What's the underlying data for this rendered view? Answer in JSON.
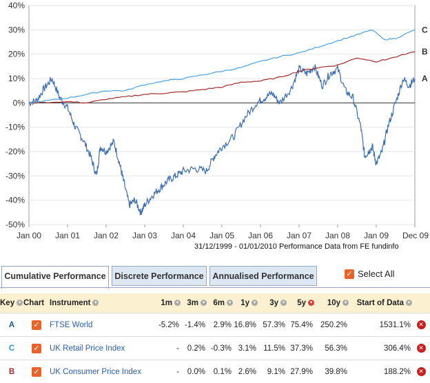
{
  "chart_data": {
    "type": "line",
    "y_ticks": [
      "40%",
      "30%",
      "20%",
      "10%",
      "0%",
      "-10%",
      "-20%",
      "-30%",
      "-40%",
      "-50%"
    ],
    "ylim": [
      -50,
      40
    ],
    "x_ticks": [
      "Jan 00",
      "Jan 01",
      "Jan 02",
      "Jan 03",
      "Jan 04",
      "Jan 05",
      "Jan 06",
      "Jan 07",
      "Jan 08",
      "Jan 09",
      "Dec 09"
    ],
    "caption": "31/12/1999 - 01/01/2010 Performance Data from FE fundinfo",
    "series": [
      {
        "key": "A",
        "color": "#3a6db5",
        "points": [
          [
            0,
            0
          ],
          [
            0.2,
            1
          ],
          [
            0.4,
            6
          ],
          [
            0.6,
            10
          ],
          [
            0.8,
            2
          ],
          [
            1.0,
            -2
          ],
          [
            1.2,
            -10
          ],
          [
            1.4,
            -15
          ],
          [
            1.6,
            -22
          ],
          [
            1.75,
            -30
          ],
          [
            1.85,
            -18
          ],
          [
            2.0,
            -20
          ],
          [
            2.2,
            -16
          ],
          [
            2.35,
            -25
          ],
          [
            2.45,
            -32
          ],
          [
            2.6,
            -42
          ],
          [
            2.75,
            -40
          ],
          [
            2.9,
            -45
          ],
          [
            3.0,
            -42
          ],
          [
            3.2,
            -38
          ],
          [
            3.4,
            -35
          ],
          [
            3.6,
            -32
          ],
          [
            3.8,
            -30
          ],
          [
            4.0,
            -28
          ],
          [
            4.3,
            -27
          ],
          [
            4.6,
            -28
          ],
          [
            4.8,
            -22
          ],
          [
            5.0,
            -18
          ],
          [
            5.3,
            -14
          ],
          [
            5.6,
            -6
          ],
          [
            5.9,
            0
          ],
          [
            6.1,
            2
          ],
          [
            6.3,
            4
          ],
          [
            6.5,
            0
          ],
          [
            6.8,
            6
          ],
          [
            7.0,
            14
          ],
          [
            7.2,
            12
          ],
          [
            7.4,
            15
          ],
          [
            7.6,
            7
          ],
          [
            7.8,
            12
          ],
          [
            8.0,
            14
          ],
          [
            8.2,
            5
          ],
          [
            8.4,
            2
          ],
          [
            8.6,
            -10
          ],
          [
            8.7,
            -22
          ],
          [
            8.8,
            -20
          ],
          [
            8.9,
            -18
          ],
          [
            9.0,
            -25
          ],
          [
            9.15,
            -20
          ],
          [
            9.3,
            -10
          ],
          [
            9.5,
            0
          ],
          [
            9.7,
            10
          ],
          [
            9.85,
            7
          ],
          [
            10.0,
            10
          ]
        ]
      },
      {
        "key": "B",
        "color": "#a52a2a",
        "points": [
          [
            0,
            0
          ],
          [
            1,
            0.5
          ],
          [
            1.5,
            0
          ],
          [
            2,
            1.5
          ],
          [
            2.5,
            2.5
          ],
          [
            3,
            3.5
          ],
          [
            3.5,
            4
          ],
          [
            4,
            4.5
          ],
          [
            4.5,
            5.5
          ],
          [
            5,
            6.5
          ],
          [
            5.5,
            8.5
          ],
          [
            6,
            9
          ],
          [
            6.5,
            10.5
          ],
          [
            7,
            13
          ],
          [
            7.5,
            14.5
          ],
          [
            8,
            15.5
          ],
          [
            8.5,
            18.5
          ],
          [
            9,
            17
          ],
          [
            9.3,
            18
          ],
          [
            10,
            21
          ]
        ]
      },
      {
        "key": "C",
        "color": "#4a9fe0",
        "points": [
          [
            0,
            0
          ],
          [
            0.5,
            1
          ],
          [
            1,
            2
          ],
          [
            1.5,
            3.5
          ],
          [
            2,
            5
          ],
          [
            2.5,
            5
          ],
          [
            3,
            7.5
          ],
          [
            3.5,
            9
          ],
          [
            4,
            10
          ],
          [
            4.5,
            11.5
          ],
          [
            5,
            13
          ],
          [
            5.5,
            14.5
          ],
          [
            6,
            17
          ],
          [
            6.5,
            19
          ],
          [
            7,
            20.5
          ],
          [
            7.5,
            23
          ],
          [
            8,
            25.5
          ],
          [
            8.5,
            28
          ],
          [
            8.9,
            30
          ],
          [
            9.2,
            26
          ],
          [
            9.5,
            26.5
          ],
          [
            10,
            30
          ]
        ]
      }
    ]
  },
  "tabs": [
    {
      "label": "Cumulative Performance",
      "active": true
    },
    {
      "label": "Discrete Performance",
      "active": false
    },
    {
      "label": "Annualised Performance",
      "active": false
    }
  ],
  "select_all_label": "Select All",
  "table": {
    "headers": [
      "Key",
      "Chart",
      "Instrument",
      "1m",
      "3m",
      "6m",
      "1y",
      "3y",
      "5y",
      "10y",
      "Start of Data"
    ],
    "rows": [
      {
        "key": "A",
        "instrument": "FTSE World",
        "m1": "-5.2%",
        "m3": "-1.4%",
        "m6": "2.9%",
        "y1": "16.8%",
        "y3": "57.3%",
        "y5": "75.4%",
        "y10": "250.2%",
        "start": "1531.1%"
      },
      {
        "key": "C",
        "instrument": "UK Retail Price Index",
        "m1": "-",
        "m3": "0.2%",
        "m6": "-0.3%",
        "y1": "3.1%",
        "y3": "11.5%",
        "y5": "37.3%",
        "y10": "56.3%",
        "start": "306.4%"
      },
      {
        "key": "B",
        "instrument": "UK Consumer Price Index",
        "m1": "-",
        "m3": "0.0%",
        "m6": "0.1%",
        "y1": "2.6%",
        "y3": "9.1%",
        "y5": "27.9%",
        "y10": "39.8%",
        "start": "188.2%"
      }
    ]
  },
  "icons": {
    "sort": "sort-chevron-icon",
    "checkbox": "checkmark-icon",
    "remove": "remove-x-icon"
  }
}
